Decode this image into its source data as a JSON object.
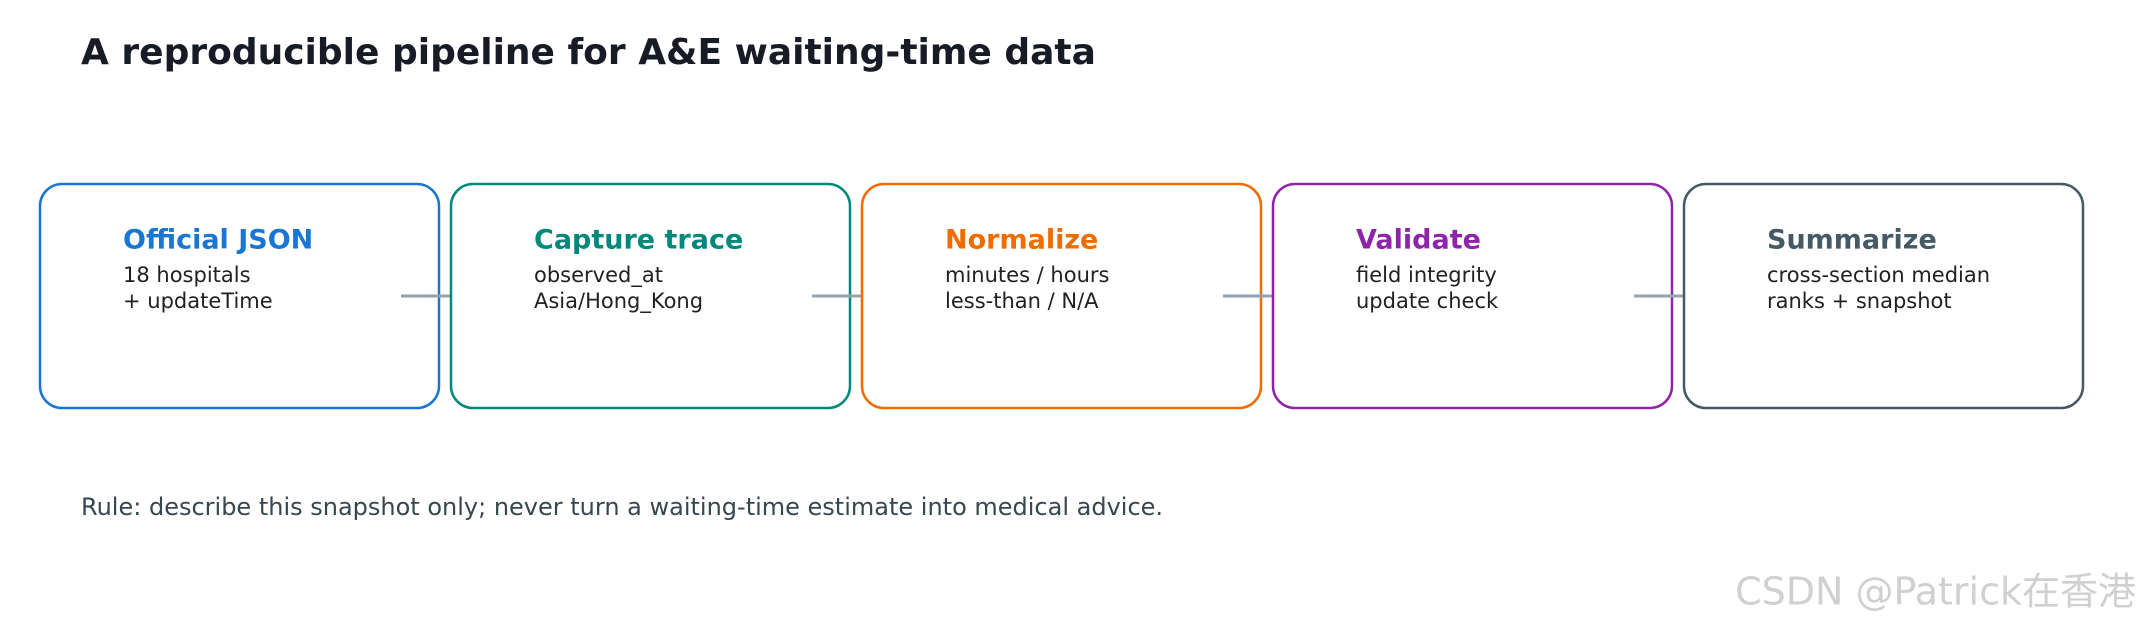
{
  "title": "A reproducible pipeline for A&E waiting-time data",
  "steps": [
    {
      "title": "Official JSON",
      "lines": [
        "18 hospitals",
        "+ updateTime"
      ],
      "color": "#1976d2"
    },
    {
      "title": "Capture trace",
      "lines": [
        "observed_at",
        "Asia/Hong_Kong"
      ],
      "color": "#00897b"
    },
    {
      "title": "Normalize",
      "lines": [
        "minutes / hours",
        "less-than / N/A"
      ],
      "color": "#ef6c00"
    },
    {
      "title": "Validate",
      "lines": [
        "field integrity",
        "update check"
      ],
      "color": "#8e24aa"
    },
    {
      "title": "Summarize",
      "lines": [
        "cross-section median",
        "ranks + snapshot"
      ],
      "color": "#455a64"
    }
  ],
  "rule": "Rule: describe this snapshot only; never turn a waiting-time estimate into medical advice.",
  "watermark": "CSDN @Patrick在香港"
}
